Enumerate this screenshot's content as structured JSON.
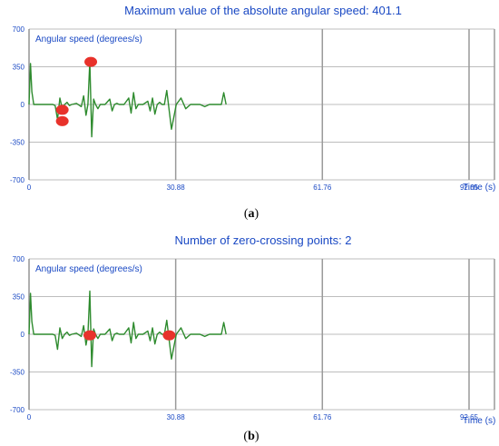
{
  "chart_data": [
    {
      "type": "line",
      "title": "Maximum value of the absolute angular speed: 401.1",
      "series_label": "Angular speed (degrees/s)",
      "xlabel": "Time (s)",
      "panel_label": "a",
      "xlim": [
        0,
        98
      ],
      "ylim": [
        -700,
        700
      ],
      "x_ticks": [
        "0",
        "30.88",
        "61.76",
        "92.65"
      ],
      "x_tick_values": [
        0,
        30.88,
        61.76,
        92.65
      ],
      "y_ticks": [
        "700",
        "350",
        "0",
        "-350",
        "-700"
      ],
      "y_tick_values": [
        700,
        350,
        0,
        -350,
        -700
      ],
      "grid": true,
      "line_color": "#2e8b2e",
      "marker_color": "#e8322b",
      "series": [
        {
          "x": [
            0,
            0.3,
            0.6,
            1,
            2,
            3,
            4,
            5,
            5.5,
            6,
            6.5,
            7,
            7.5,
            8,
            8.5,
            9,
            10,
            11,
            11.5,
            12,
            12.4,
            12.8,
            13.2,
            13.6,
            14,
            14.5,
            15,
            16,
            17,
            17.5,
            18,
            18.5,
            19,
            20,
            21,
            21.5,
            22,
            22.5,
            23,
            24,
            25,
            25.5,
            26,
            26.5,
            27,
            27.5,
            28,
            28.5,
            29,
            30,
            31,
            32,
            33,
            34,
            34.5,
            35,
            35.5,
            36,
            37,
            38,
            39,
            40,
            40.5,
            41,
            41.5
          ],
          "y": [
            0,
            380,
            120,
            0,
            0,
            0,
            0,
            0,
            -10,
            -140,
            60,
            -40,
            0,
            20,
            -10,
            0,
            10,
            -20,
            80,
            -100,
            0,
            401,
            -300,
            50,
            0,
            -40,
            0,
            0,
            50,
            -60,
            0,
            10,
            0,
            0,
            60,
            -80,
            110,
            -40,
            0,
            0,
            30,
            -60,
            60,
            -90,
            0,
            20,
            0,
            0,
            130,
            -230,
            0,
            60,
            -40,
            0,
            0,
            0,
            0,
            0,
            -20,
            0,
            0,
            0,
            0,
            110,
            0
          ]
        }
      ],
      "markers": [
        {
          "x": 7,
          "y": -50
        },
        {
          "x": 7,
          "y": -155
        },
        {
          "x": 13,
          "y": 395
        }
      ]
    },
    {
      "type": "line",
      "title": "Number of zero-crossing points: 2",
      "series_label": "Angular speed (degrees/s)",
      "xlabel": "Time (s)",
      "panel_label": "b",
      "xlim": [
        0,
        98
      ],
      "ylim": [
        -700,
        700
      ],
      "x_ticks": [
        "0",
        "30.88",
        "61.76",
        "92.65"
      ],
      "x_tick_values": [
        0,
        30.88,
        61.76,
        92.65
      ],
      "y_ticks": [
        "700",
        "350",
        "0",
        "-350",
        "-700"
      ],
      "y_tick_values": [
        700,
        350,
        0,
        -350,
        -700
      ],
      "grid": true,
      "line_color": "#2e8b2e",
      "marker_color": "#e8322b",
      "series": [
        {
          "x": [
            0,
            0.3,
            0.6,
            1,
            2,
            3,
            4,
            5,
            5.5,
            6,
            6.5,
            7,
            7.5,
            8,
            8.5,
            9,
            10,
            11,
            11.5,
            12,
            12.4,
            12.8,
            13.2,
            13.6,
            14,
            14.5,
            15,
            16,
            17,
            17.5,
            18,
            18.5,
            19,
            20,
            21,
            21.5,
            22,
            22.5,
            23,
            24,
            25,
            25.5,
            26,
            26.5,
            27,
            27.5,
            28,
            28.5,
            29,
            30,
            31,
            32,
            33,
            34,
            34.5,
            35,
            35.5,
            36,
            37,
            38,
            39,
            40,
            40.5,
            41,
            41.5
          ],
          "y": [
            0,
            380,
            120,
            0,
            0,
            0,
            0,
            0,
            -10,
            -140,
            60,
            -40,
            0,
            20,
            -10,
            0,
            10,
            -20,
            80,
            -100,
            0,
            401,
            -300,
            50,
            0,
            -40,
            0,
            0,
            50,
            -60,
            0,
            10,
            0,
            0,
            60,
            -80,
            110,
            -40,
            0,
            0,
            30,
            -60,
            60,
            -90,
            0,
            20,
            0,
            0,
            130,
            -230,
            0,
            60,
            -40,
            0,
            0,
            0,
            0,
            0,
            -20,
            0,
            0,
            0,
            0,
            110,
            0
          ]
        }
      ],
      "markers": [
        {
          "x": 12.8,
          "y": -10
        },
        {
          "x": 29.5,
          "y": -10
        }
      ]
    }
  ]
}
